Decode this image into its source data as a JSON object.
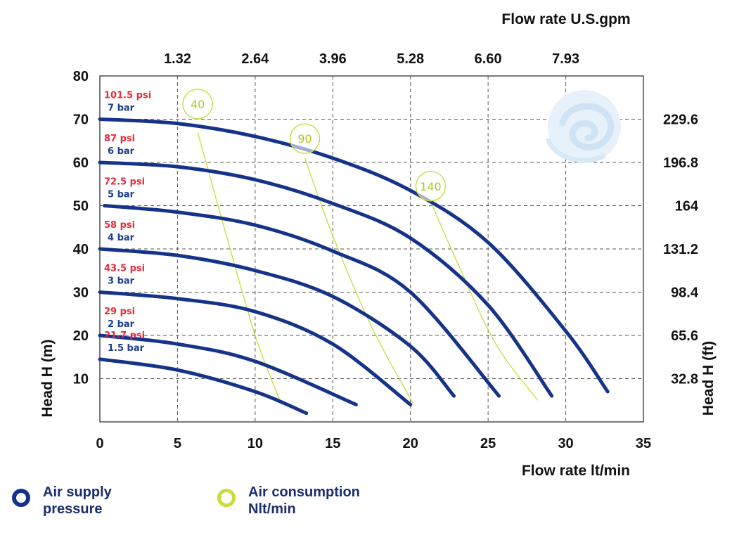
{
  "chart_data": {
    "type": "line",
    "title": "",
    "xlabel": "Flow rate  lt/min",
    "x2label": "Flow rate U.S.gpm",
    "ylabel": "Head H (m)",
    "y2label": "Head H (ft)",
    "xlim": [
      0,
      35
    ],
    "ylim": [
      0,
      80
    ],
    "grid": true,
    "x_ticks": [
      "0",
      "5",
      "10",
      "15",
      "20",
      "25",
      "30",
      "35"
    ],
    "y_ticks": [
      "10",
      "20",
      "30",
      "40",
      "50",
      "60",
      "70",
      "80"
    ],
    "x2_ticks": [
      {
        "x": 5,
        "label": "1.32"
      },
      {
        "x": 10,
        "label": "2.64"
      },
      {
        "x": 15,
        "label": "3.96"
      },
      {
        "x": 20,
        "label": "5.28"
      },
      {
        "x": 25,
        "label": "6.60"
      },
      {
        "x": 30,
        "label": "7.93"
      }
    ],
    "y2_ticks": [
      {
        "y": 10,
        "label": "32.8"
      },
      {
        "y": 20,
        "label": "65.6"
      },
      {
        "y": 30,
        "label": "98.4"
      },
      {
        "y": 40,
        "label": "131.2"
      },
      {
        "y": 50,
        "label": "164"
      },
      {
        "y": 60,
        "label": "196.8"
      },
      {
        "y": 70,
        "label": "229.6"
      }
    ],
    "series": [
      {
        "name": "1.5 bar",
        "psi": "21.7 psi",
        "x": [
          0,
          5,
          10,
          13.3
        ],
        "y": [
          14.5,
          12,
          7,
          2
        ]
      },
      {
        "name": "2 bar",
        "psi": "29 psi",
        "x": [
          0,
          5,
          10,
          16.5
        ],
        "y": [
          20,
          18,
          14,
          4
        ]
      },
      {
        "name": "3 bar",
        "psi": "43.5 psi",
        "x": [
          0,
          5,
          10,
          15,
          20
        ],
        "y": [
          30,
          28.5,
          25.5,
          18,
          4
        ]
      },
      {
        "name": "4 bar",
        "psi": "58 psi",
        "x": [
          0,
          5,
          10,
          15,
          20,
          22.8
        ],
        "y": [
          40,
          38.5,
          35,
          29,
          17.5,
          6
        ]
      },
      {
        "name": "5 bar",
        "psi": "72.5 psi",
        "x": [
          0.3,
          5,
          10,
          15,
          20,
          25.7
        ],
        "y": [
          50,
          48.5,
          45.5,
          39.5,
          30,
          6
        ]
      },
      {
        "name": "6 bar",
        "psi": "87 psi",
        "x": [
          0,
          5,
          10,
          15,
          20,
          25,
          29.1
        ],
        "y": [
          60,
          59,
          56,
          50.5,
          42.5,
          27,
          6
        ]
      },
      {
        "name": "7 bar",
        "psi": "101.5 psi",
        "x": [
          0,
          5,
          10,
          15,
          20,
          25,
          30,
          32.7
        ],
        "y": [
          70,
          69,
          66,
          61,
          53.5,
          41.5,
          21,
          7
        ]
      }
    ],
    "air_consumption": [
      {
        "label": "40",
        "x": [
          6.3,
          8,
          10,
          11.7
        ],
        "y": [
          67,
          45,
          20,
          4
        ]
      },
      {
        "label": "90",
        "x": [
          13.2,
          15,
          17.5,
          20.2
        ],
        "y": [
          61,
          43,
          22,
          4
        ]
      },
      {
        "label": "140",
        "x": [
          21.3,
          23,
          25.5,
          28.2
        ],
        "y": [
          51,
          37,
          18,
          5
        ]
      }
    ],
    "air_labels": [
      {
        "label": "40",
        "x": 6.3,
        "y": 73.5
      },
      {
        "label": "90",
        "x": 13.2,
        "y": 65.5
      },
      {
        "label": "140",
        "x": 21.3,
        "y": 54.5
      }
    ],
    "colors": {
      "curve": "#16338a",
      "air": "#c8dc3a",
      "psi": "#e8293a",
      "bar": "#1c3f8c",
      "grid": "#555555"
    }
  },
  "legend": {
    "supply_line1": "Air supply",
    "supply_line2": "pressure",
    "consumption_line1": "Air consumption",
    "consumption_line2": "Nlt/min"
  },
  "logo": "swirl-logo"
}
